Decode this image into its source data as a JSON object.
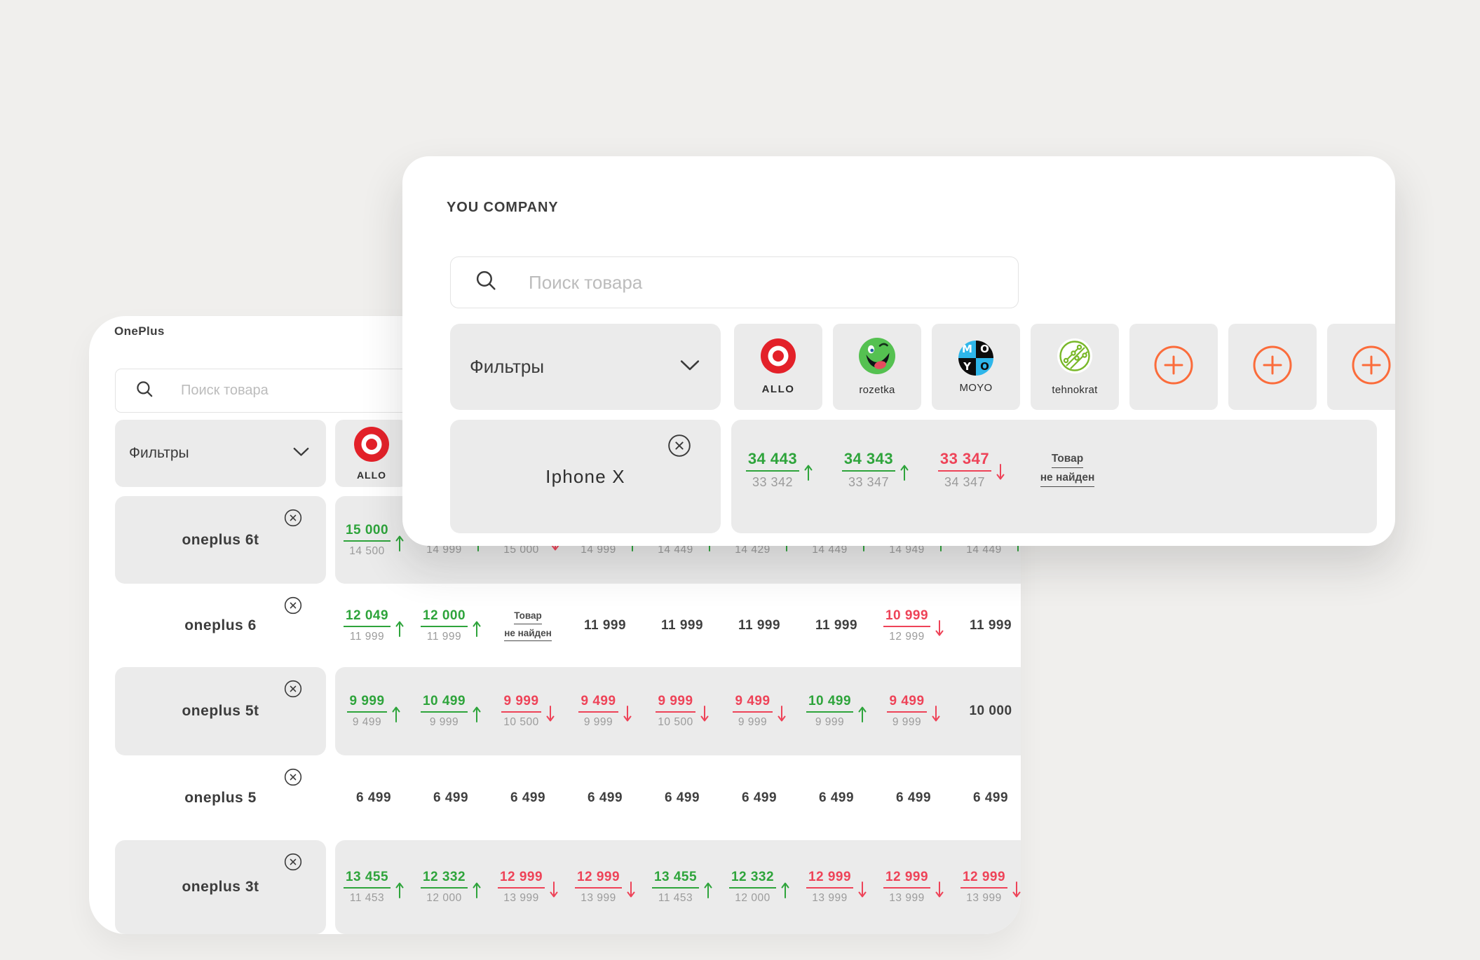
{
  "front_card": {
    "title": "YOU COMPANY",
    "search_placeholder": "Поиск товара",
    "filters_label": "Фильтры",
    "retailers": [
      {
        "id": "allo",
        "label": "ALLO"
      },
      {
        "id": "rozetka",
        "label": "rozetka"
      },
      {
        "id": "moyo",
        "label": "MOYO"
      },
      {
        "id": "tehnokrat",
        "label": "tehnokrat"
      }
    ],
    "add_tiles": 3,
    "product": {
      "name": "Iphone X",
      "prices": [
        {
          "current": "34 443",
          "previous": "33 342",
          "trend": "up"
        },
        {
          "current": "34 343",
          "previous": "33 347",
          "trend": "up"
        },
        {
          "current": "33 347",
          "previous": "34 347",
          "trend": "down"
        },
        {
          "not_found": [
            "Товар",
            "не найден"
          ]
        }
      ]
    }
  },
  "back_card": {
    "title": "OnePlus",
    "search_placeholder": "Поиск товара",
    "filters_label": "Фильтры",
    "retailers": [
      {
        "id": "allo",
        "label": "ALLO"
      }
    ],
    "rows": [
      {
        "name": "oneplus 6t",
        "shaded": true,
        "prices": [
          {
            "current": "15 000",
            "previous": "14 500",
            "trend": "up"
          },
          {
            "current": "",
            "previous": "14 999",
            "trend": "up"
          },
          {
            "current": "",
            "previous": "15 000",
            "trend": "down"
          },
          {
            "current": "",
            "previous": "14 999",
            "trend": "up"
          },
          {
            "current": "",
            "previous": "14 449",
            "trend": "up"
          },
          {
            "current": "",
            "previous": "14 429",
            "trend": "up"
          },
          {
            "current": "",
            "previous": "14 449",
            "trend": "up"
          },
          {
            "current": "",
            "previous": "14 949",
            "trend": "up"
          },
          {
            "current": "",
            "previous": "14 449",
            "trend": "up"
          }
        ]
      },
      {
        "name": "oneplus 6",
        "shaded": false,
        "prices": [
          {
            "current": "12 049",
            "previous": "11 999",
            "trend": "up"
          },
          {
            "current": "12 000",
            "previous": "11 999",
            "trend": "up"
          },
          {
            "not_found": [
              "Товар",
              "не найден"
            ]
          },
          {
            "value": "11 999"
          },
          {
            "value": "11 999"
          },
          {
            "value": "11 999"
          },
          {
            "value": "11 999"
          },
          {
            "current": "10 999",
            "previous": "12 999",
            "trend": "down"
          },
          {
            "value": "11 999"
          }
        ]
      },
      {
        "name": "oneplus 5t",
        "shaded": true,
        "prices": [
          {
            "current": "9 999",
            "previous": "9 499",
            "trend": "up"
          },
          {
            "current": "10 499",
            "previous": "9 999",
            "trend": "up"
          },
          {
            "current": "9 999",
            "previous": "10 500",
            "trend": "down"
          },
          {
            "current": "9 499",
            "previous": "9 999",
            "trend": "down"
          },
          {
            "current": "9 999",
            "previous": "10 500",
            "trend": "down"
          },
          {
            "current": "9 499",
            "previous": "9 999",
            "trend": "down"
          },
          {
            "current": "10 499",
            "previous": "9 999",
            "trend": "up"
          },
          {
            "current": "9 499",
            "previous": "9 999",
            "trend": "down"
          },
          {
            "value": "10 000"
          }
        ]
      },
      {
        "name": "oneplus 5",
        "shaded": false,
        "prices": [
          {
            "value": "6 499"
          },
          {
            "value": "6 499"
          },
          {
            "value": "6 499"
          },
          {
            "value": "6 499"
          },
          {
            "value": "6 499"
          },
          {
            "value": "6 499"
          },
          {
            "value": "6 499"
          },
          {
            "value": "6 499"
          },
          {
            "value": "6 499"
          }
        ]
      },
      {
        "name": "oneplus 3t",
        "shaded": true,
        "prices": [
          {
            "current": "13 455",
            "previous": "11 453",
            "trend": "up"
          },
          {
            "current": "12 332",
            "previous": "12 000",
            "trend": "up"
          },
          {
            "current": "12 999",
            "previous": "13 999",
            "trend": "down"
          },
          {
            "current": "12 999",
            "previous": "13 999",
            "trend": "down"
          },
          {
            "current": "13 455",
            "previous": "11 453",
            "trend": "up"
          },
          {
            "current": "12 332",
            "previous": "12 000",
            "trend": "up"
          },
          {
            "current": "12 999",
            "previous": "13 999",
            "trend": "down"
          },
          {
            "current": "12 999",
            "previous": "13 999",
            "trend": "down"
          },
          {
            "current": "12 999",
            "previous": "13 999",
            "trend": "down"
          }
        ]
      }
    ]
  },
  "colors": {
    "up_green": "#2ea43b",
    "down_red": "#ee4358",
    "accent_orange": "#fb6c3b",
    "tile_gray": "#ebebeb",
    "page_bg": "#f0efed"
  }
}
